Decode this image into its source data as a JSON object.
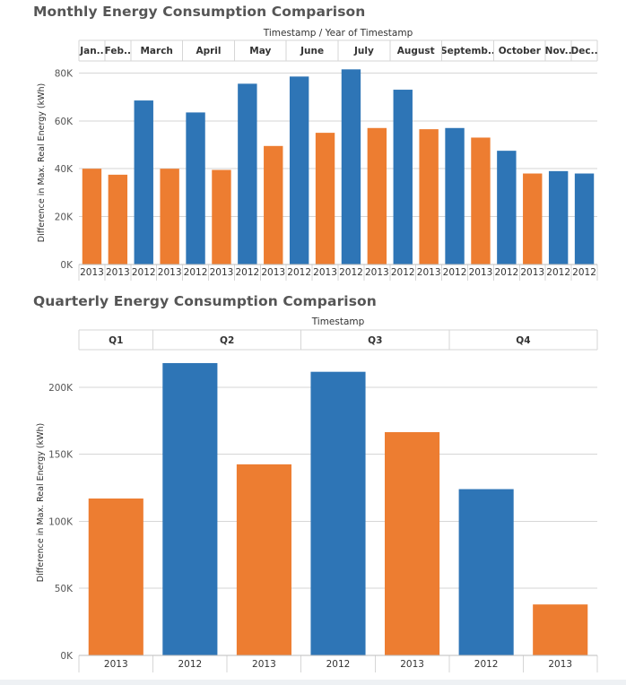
{
  "colors": {
    "year_2012": "#2e75b6",
    "year_2013": "#ed7d31",
    "grid": "#d6d6d6",
    "axis_text": "#555555"
  },
  "chart_data": [
    {
      "type": "bar",
      "title": "Monthly Energy Consumption Comparison",
      "header": "Timestamp  /  Year of Timestamp",
      "ylabel": "Difference in Max. Real Energy (kWh)",
      "ylim": [
        0,
        85000
      ],
      "yticks": [
        0,
        20000,
        40000,
        60000,
        80000
      ],
      "ytick_labels": [
        "0K",
        "20K",
        "40K",
        "60K",
        "80K"
      ],
      "months": [
        {
          "label": "Jan..",
          "bars": [
            {
              "year": "2013",
              "value": 40000
            }
          ]
        },
        {
          "label": "Feb..",
          "bars": [
            {
              "year": "2013",
              "value": 37500
            }
          ]
        },
        {
          "label": "March",
          "bars": [
            {
              "year": "2012",
              "value": 68500
            },
            {
              "year": "2013",
              "value": 40000
            }
          ]
        },
        {
          "label": "April",
          "bars": [
            {
              "year": "2012",
              "value": 63500
            },
            {
              "year": "2013",
              "value": 39500
            }
          ]
        },
        {
          "label": "May",
          "bars": [
            {
              "year": "2012",
              "value": 75500
            },
            {
              "year": "2013",
              "value": 49500
            }
          ]
        },
        {
          "label": "June",
          "bars": [
            {
              "year": "2012",
              "value": 78500
            },
            {
              "year": "2013",
              "value": 55000
            }
          ]
        },
        {
          "label": "July",
          "bars": [
            {
              "year": "2012",
              "value": 81500
            },
            {
              "year": "2013",
              "value": 57000
            }
          ]
        },
        {
          "label": "August",
          "bars": [
            {
              "year": "2012",
              "value": 73000
            },
            {
              "year": "2013",
              "value": 56500
            }
          ]
        },
        {
          "label": "Septemb..",
          "bars": [
            {
              "year": "2012",
              "value": 57000
            },
            {
              "year": "2013",
              "value": 53000
            }
          ]
        },
        {
          "label": "October",
          "bars": [
            {
              "year": "2012",
              "value": 47500
            },
            {
              "year": "2013",
              "value": 38000
            }
          ]
        },
        {
          "label": "Nov..",
          "bars": [
            {
              "year": "2012",
              "value": 39000
            }
          ]
        },
        {
          "label": "Dec..",
          "bars": [
            {
              "year": "2012",
              "value": 38000
            }
          ]
        }
      ]
    },
    {
      "type": "bar",
      "title": "Quarterly Energy Consumption Comparison",
      "header": "Timestamp",
      "ylabel": "Difference in Max. Real Energy (kWh)",
      "ylim": [
        0,
        228000
      ],
      "yticks": [
        0,
        50000,
        100000,
        150000,
        200000
      ],
      "ytick_labels": [
        "0K",
        "50K",
        "100K",
        "150K",
        "200K"
      ],
      "quarters": [
        {
          "label": "Q1",
          "bars": [
            {
              "year": "2013",
              "value": 117000
            }
          ]
        },
        {
          "label": "Q2",
          "bars": [
            {
              "year": "2012",
              "value": 218000
            },
            {
              "year": "2013",
              "value": 142500
            }
          ]
        },
        {
          "label": "Q3",
          "bars": [
            {
              "year": "2012",
              "value": 211500
            },
            {
              "year": "2013",
              "value": 166500
            }
          ]
        },
        {
          "label": "Q4",
          "bars": [
            {
              "year": "2012",
              "value": 124000
            },
            {
              "year": "2013",
              "value": 38000
            }
          ]
        }
      ]
    }
  ]
}
